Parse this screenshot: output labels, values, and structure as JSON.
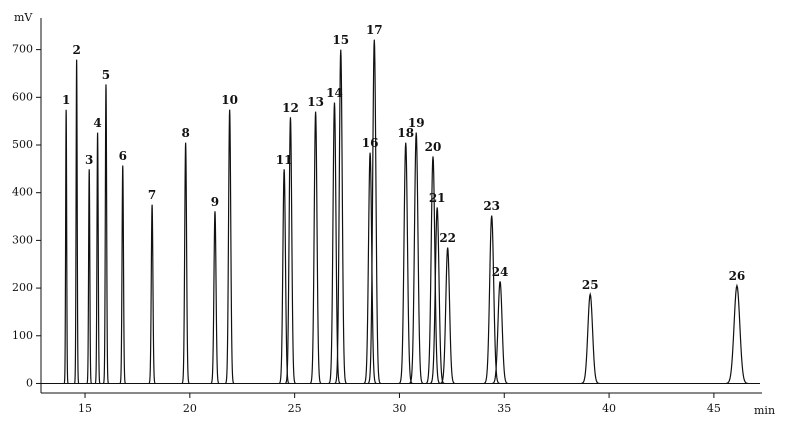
{
  "chart_data": {
    "type": "chromatogram",
    "y_label": "mV",
    "x_label": "min",
    "labels": [
      "1",
      "2",
      "3",
      "4",
      "5",
      "6",
      "7",
      "8",
      "9",
      "10",
      "11",
      "12",
      "13",
      "14",
      "15",
      "16",
      "17",
      "18",
      "19",
      "20",
      "21",
      "22",
      "23",
      "24",
      "25",
      "26"
    ],
    "x": [
      14.1,
      14.6,
      15.2,
      15.6,
      16.0,
      16.8,
      18.2,
      19.8,
      21.2,
      21.9,
      24.5,
      24.8,
      26.0,
      26.9,
      27.2,
      28.6,
      28.8,
      30.3,
      30.8,
      31.6,
      31.8,
      32.3,
      34.4,
      34.8,
      39.1,
      46.1
    ],
    "values": [
      574,
      679,
      449,
      526,
      627,
      457,
      375,
      505,
      361,
      574,
      449,
      558,
      570,
      589,
      700,
      484,
      721,
      505,
      526,
      476,
      369,
      285,
      352,
      214,
      187,
      205
    ],
    "color": "#111111",
    "xlim": [
      12.9,
      47.2
    ],
    "xticks": [
      15,
      20,
      25,
      30,
      35,
      40,
      45
    ],
    "ylim": [
      -20,
      760
    ],
    "yticks": [
      0,
      100,
      200,
      300,
      400,
      500,
      600,
      700
    ]
  }
}
